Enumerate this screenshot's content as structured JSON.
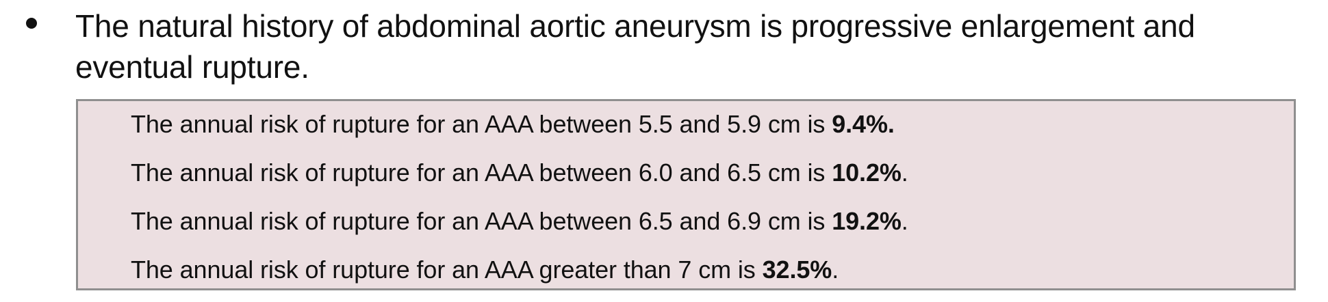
{
  "bullet": {
    "text": "The natural history of abdominal aortic aneurysm is progressive enlargement and eventual rupture."
  },
  "risk_box": {
    "lines": [
      {
        "prefix": "The annual risk of rupture for an AAA between 5.5 and 5.9 cm is ",
        "value": "9.4%.",
        "suffix": ""
      },
      {
        "prefix": "The annual risk of rupture for an AAA between 6.0 and 6.5 cm is ",
        "value": "10.2%",
        "suffix": "."
      },
      {
        "prefix": "The annual risk of rupture for an AAA between 6.5 and 6.9 cm is ",
        "value": "19.2%",
        "suffix": "."
      },
      {
        "prefix": "The annual risk of rupture for an AAA greater than 7 cm is ",
        "value": "32.5%",
        "suffix": "."
      }
    ],
    "background_color": "#ecdfe1",
    "border_color": "#8f8f8f"
  }
}
